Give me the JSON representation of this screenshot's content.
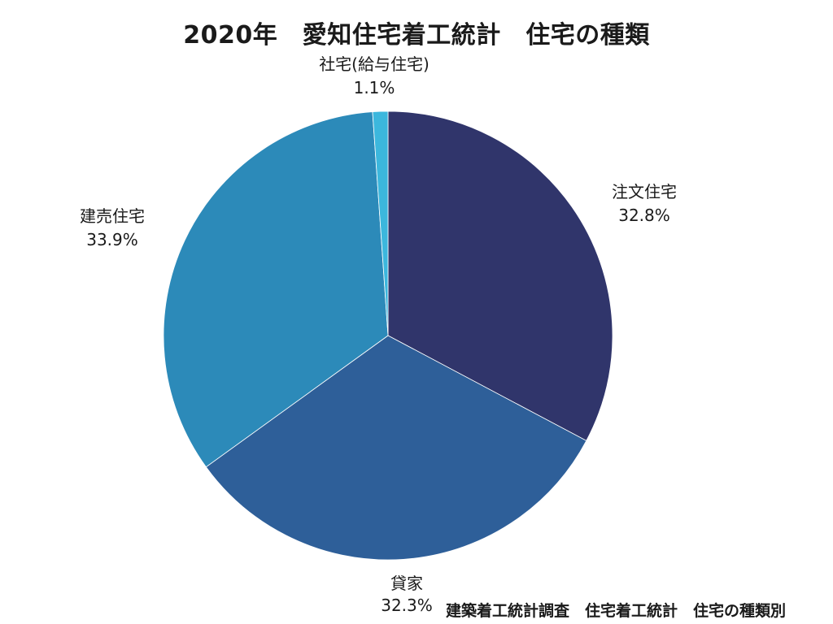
{
  "chart_data": {
    "type": "pie",
    "title": "2020年　愛知住宅着工統計　住宅の種類",
    "start_angle_deg": 0,
    "direction": "clockwise",
    "slices": [
      {
        "label": "注文住宅",
        "value": 32.8,
        "value_label": "32.8%",
        "color": "#30356b"
      },
      {
        "label": "貸家",
        "value": 32.3,
        "value_label": "32.3%",
        "color": "#2e5f99"
      },
      {
        "label": "建売住宅",
        "value": 33.9,
        "value_label": "33.9%",
        "color": "#2c8ab9"
      },
      {
        "label": "社宅(給与住宅)",
        "value": 1.1,
        "value_label": "1.1%",
        "color": "#3cb7dd"
      }
    ]
  },
  "source": "建築着工統計調査　住宅着工統計　住宅の種類別"
}
